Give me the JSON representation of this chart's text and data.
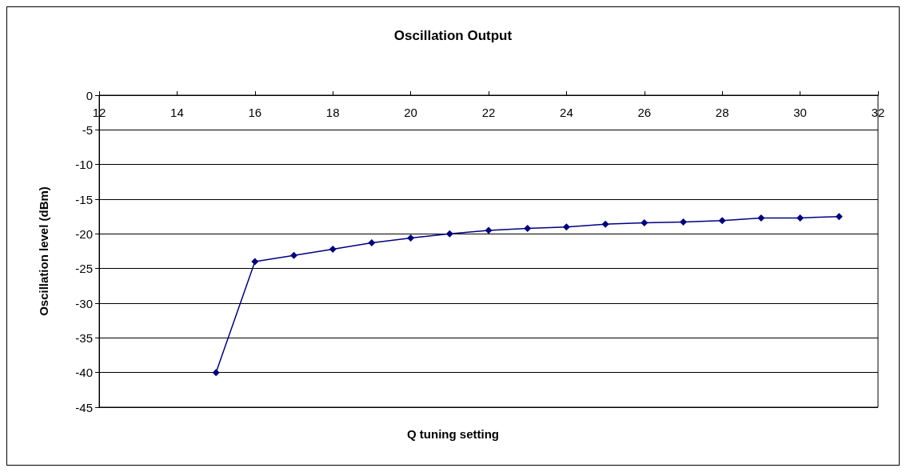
{
  "chart_data": {
    "type": "line",
    "title": "Oscillation Output",
    "xlabel": "Q tuning setting",
    "ylabel": "Oscillation level (dBm)",
    "x": [
      15,
      16,
      17,
      18,
      19,
      20,
      21,
      22,
      23,
      24,
      25,
      26,
      27,
      28,
      29,
      30,
      31
    ],
    "series": [
      {
        "color": "#000080",
        "values": [
          -40,
          -24.0,
          -23.1,
          -22.2,
          -21.3,
          -20.6,
          -20.0,
          -19.5,
          -19.2,
          -19.0,
          -18.6,
          -18.4,
          -18.3,
          -18.1,
          -17.7,
          -17.7,
          -17.5
        ]
      }
    ],
    "xlim": [
      12,
      32
    ],
    "xticks": [
      12,
      14,
      16,
      18,
      20,
      22,
      24,
      26,
      28,
      30,
      32
    ],
    "ylim": [
      -45,
      0
    ],
    "yticks": [
      -45,
      -40,
      -35,
      -30,
      -25,
      -20,
      -15,
      -10,
      -5,
      0
    ],
    "grid": "y",
    "marker": "diamond",
    "line_style": "solid"
  }
}
